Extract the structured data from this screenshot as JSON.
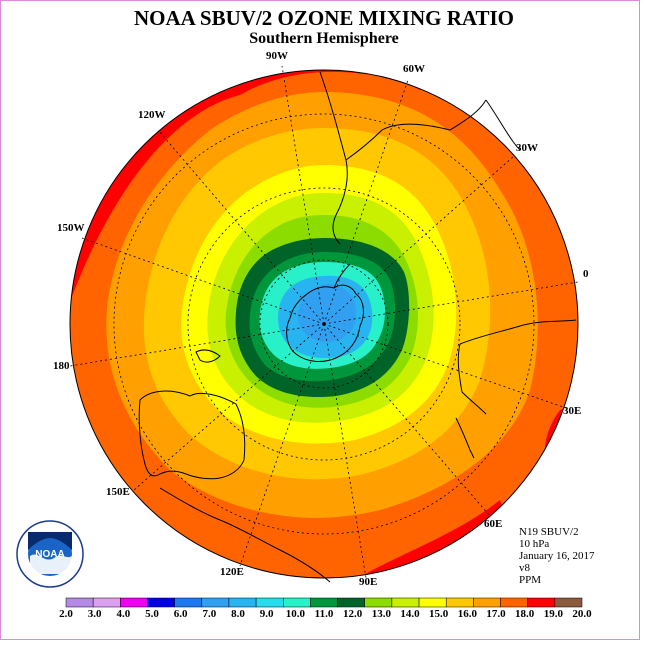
{
  "title": "NOAA SBUV/2 OZONE MIXING RATIO",
  "subtitle": "Southern Hemisphere",
  "longitude_labels": {
    "w90": "90W",
    "w60": "60W",
    "w30": "30W",
    "w120": "120W",
    "w150": "150W",
    "e0": "0",
    "e180": "180",
    "e30": "30E",
    "e150": "150E",
    "e60": "60E",
    "e120": "120E",
    "e90": "90E"
  },
  "info": {
    "instrument": "N19 SBUV/2",
    "level": "10 hPa",
    "date": "January 16, 2017",
    "version": "v8",
    "units": "PPM"
  },
  "logo_text": "NOAA",
  "colorbar": {
    "labels": [
      "2.0",
      "3.0",
      "4.0",
      "5.0",
      "6.0",
      "7.0",
      "8.0",
      "9.0",
      "10.0",
      "11.0",
      "12.0",
      "13.0",
      "14.0",
      "15.0",
      "16.0",
      "17.0",
      "18.0",
      "19.0",
      "20.0"
    ],
    "colors": [
      "#b48ae6",
      "#dca0f0",
      "#f000f0",
      "#0000e6",
      "#1e78f0",
      "#32a0f0",
      "#28b4f0",
      "#28dcf0",
      "#28f0c8",
      "#00963c",
      "#006428",
      "#8cdc00",
      "#c8f000",
      "#ffff00",
      "#ffc800",
      "#ffa000",
      "#ff6400",
      "#ff0000",
      "#8c5a3c"
    ]
  },
  "map_contours": {
    "center_ppm_band": 8.0,
    "bands_ppm": [
      8.0,
      9.0,
      10.0,
      11.0,
      12.0,
      13.0,
      14.0,
      15.0,
      16.0,
      17.0,
      18.0
    ]
  }
}
